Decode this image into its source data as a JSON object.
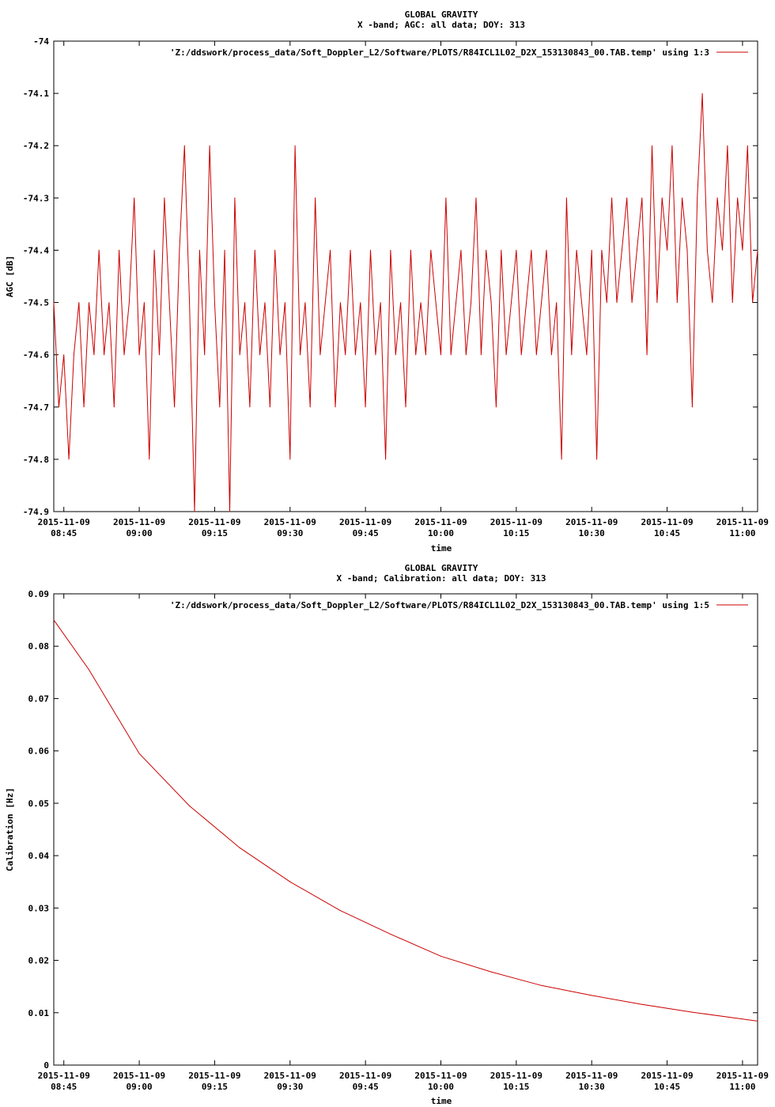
{
  "chart_data": [
    {
      "type": "line",
      "title": "GLOBAL GRAVITY",
      "subtitle": "X -band; AGC: all data; DOY: 313",
      "xlabel": "time",
      "ylabel": "AGC [dB]",
      "ylim": [
        -74.9,
        -74.0
      ],
      "yticks": [
        {
          "value": -74.0,
          "label": "-74"
        },
        {
          "value": -74.1,
          "label": "-74.1"
        },
        {
          "value": -74.2,
          "label": "-74.2"
        },
        {
          "value": -74.3,
          "label": "-74.3"
        },
        {
          "value": -74.4,
          "label": "-74.4"
        },
        {
          "value": -74.5,
          "label": "-74.5"
        },
        {
          "value": -74.6,
          "label": "-74.6"
        },
        {
          "value": -74.7,
          "label": "-74.7"
        },
        {
          "value": -74.8,
          "label": "-74.8"
        },
        {
          "value": -74.9,
          "label": "-74.9"
        }
      ],
      "xlim": [
        "2015-11-09 08:43",
        "2015-11-09 11:03"
      ],
      "xticks": [
        {
          "value": "2015-11-09 08:45",
          "date": "2015-11-09",
          "time": "08:45"
        },
        {
          "value": "2015-11-09 09:00",
          "date": "2015-11-09",
          "time": "09:00"
        },
        {
          "value": "2015-11-09 09:15",
          "date": "2015-11-09",
          "time": "09:15"
        },
        {
          "value": "2015-11-09 09:30",
          "date": "2015-11-09",
          "time": "09:30"
        },
        {
          "value": "2015-11-09 09:45",
          "date": "2015-11-09",
          "time": "09:45"
        },
        {
          "value": "2015-11-09 10:00",
          "date": "2015-11-09",
          "time": "10:00"
        },
        {
          "value": "2015-11-09 10:15",
          "date": "2015-11-09",
          "time": "10:15"
        },
        {
          "value": "2015-11-09 10:30",
          "date": "2015-11-09",
          "time": "10:30"
        },
        {
          "value": "2015-11-09 10:45",
          "date": "2015-11-09",
          "time": "10:45"
        },
        {
          "value": "2015-11-09 11:00",
          "date": "2015-11-09",
          "time": "11:00"
        }
      ],
      "legend_position": "top-right",
      "series": [
        {
          "name": "'Z:/ddswork/process_data/Soft_Doppler_L2/Software/PLOTS/R84ICL1L02_D2X_153130843_00.TAB.temp' using 1:3",
          "color": "#cc0000",
          "points": [
            [
              "2015-11-09 08:43",
              -74.5
            ],
            [
              "2015-11-09 08:44",
              -74.7
            ],
            [
              "2015-11-09 08:45",
              -74.6
            ],
            [
              "2015-11-09 08:46",
              -74.8
            ],
            [
              "2015-11-09 08:47",
              -74.6
            ],
            [
              "2015-11-09 08:48",
              -74.5
            ],
            [
              "2015-11-09 08:49",
              -74.7
            ],
            [
              "2015-11-09 08:50",
              -74.5
            ],
            [
              "2015-11-09 08:51",
              -74.6
            ],
            [
              "2015-11-09 08:52",
              -74.4
            ],
            [
              "2015-11-09 08:53",
              -74.6
            ],
            [
              "2015-11-09 08:54",
              -74.5
            ],
            [
              "2015-11-09 08:55",
              -74.7
            ],
            [
              "2015-11-09 08:56",
              -74.4
            ],
            [
              "2015-11-09 08:57",
              -74.6
            ],
            [
              "2015-11-09 08:58",
              -74.5
            ],
            [
              "2015-11-09 08:59",
              -74.3
            ],
            [
              "2015-11-09 09:00",
              -74.6
            ],
            [
              "2015-11-09 09:01",
              -74.5
            ],
            [
              "2015-11-09 09:02",
              -74.8
            ],
            [
              "2015-11-09 09:03",
              -74.4
            ],
            [
              "2015-11-09 09:04",
              -74.6
            ],
            [
              "2015-11-09 09:05",
              -74.3
            ],
            [
              "2015-11-09 09:06",
              -74.5
            ],
            [
              "2015-11-09 09:07",
              -74.7
            ],
            [
              "2015-11-09 09:08",
              -74.4
            ],
            [
              "2015-11-09 09:09",
              -74.2
            ],
            [
              "2015-11-09 09:10",
              -74.5
            ],
            [
              "2015-11-09 09:11",
              -74.9
            ],
            [
              "2015-11-09 09:12",
              -74.4
            ],
            [
              "2015-11-09 09:13",
              -74.6
            ],
            [
              "2015-11-09 09:14",
              -74.2
            ],
            [
              "2015-11-09 09:15",
              -74.5
            ],
            [
              "2015-11-09 09:16",
              -74.7
            ],
            [
              "2015-11-09 09:17",
              -74.4
            ],
            [
              "2015-11-09 09:18",
              -74.9
            ],
            [
              "2015-11-09 09:19",
              -74.3
            ],
            [
              "2015-11-09 09:20",
              -74.6
            ],
            [
              "2015-11-09 09:21",
              -74.5
            ],
            [
              "2015-11-09 09:22",
              -74.7
            ],
            [
              "2015-11-09 09:23",
              -74.4
            ],
            [
              "2015-11-09 09:24",
              -74.6
            ],
            [
              "2015-11-09 09:25",
              -74.5
            ],
            [
              "2015-11-09 09:26",
              -74.7
            ],
            [
              "2015-11-09 09:27",
              -74.4
            ],
            [
              "2015-11-09 09:28",
              -74.6
            ],
            [
              "2015-11-09 09:29",
              -74.5
            ],
            [
              "2015-11-09 09:30",
              -74.8
            ],
            [
              "2015-11-09 09:31",
              -74.2
            ],
            [
              "2015-11-09 09:32",
              -74.6
            ],
            [
              "2015-11-09 09:33",
              -74.5
            ],
            [
              "2015-11-09 09:34",
              -74.7
            ],
            [
              "2015-11-09 09:35",
              -74.3
            ],
            [
              "2015-11-09 09:36",
              -74.6
            ],
            [
              "2015-11-09 09:37",
              -74.5
            ],
            [
              "2015-11-09 09:38",
              -74.4
            ],
            [
              "2015-11-09 09:39",
              -74.7
            ],
            [
              "2015-11-09 09:40",
              -74.5
            ],
            [
              "2015-11-09 09:41",
              -74.6
            ],
            [
              "2015-11-09 09:42",
              -74.4
            ],
            [
              "2015-11-09 09:43",
              -74.6
            ],
            [
              "2015-11-09 09:44",
              -74.5
            ],
            [
              "2015-11-09 09:45",
              -74.7
            ],
            [
              "2015-11-09 09:46",
              -74.4
            ],
            [
              "2015-11-09 09:47",
              -74.6
            ],
            [
              "2015-11-09 09:48",
              -74.5
            ],
            [
              "2015-11-09 09:49",
              -74.8
            ],
            [
              "2015-11-09 09:50",
              -74.4
            ],
            [
              "2015-11-09 09:51",
              -74.6
            ],
            [
              "2015-11-09 09:52",
              -74.5
            ],
            [
              "2015-11-09 09:53",
              -74.7
            ],
            [
              "2015-11-09 09:54",
              -74.4
            ],
            [
              "2015-11-09 09:55",
              -74.6
            ],
            [
              "2015-11-09 09:56",
              -74.5
            ],
            [
              "2015-11-09 09:57",
              -74.6
            ],
            [
              "2015-11-09 09:58",
              -74.4
            ],
            [
              "2015-11-09 09:59",
              -74.5
            ],
            [
              "2015-11-09 10:00",
              -74.6
            ],
            [
              "2015-11-09 10:01",
              -74.3
            ],
            [
              "2015-11-09 10:02",
              -74.6
            ],
            [
              "2015-11-09 10:03",
              -74.5
            ],
            [
              "2015-11-09 10:04",
              -74.4
            ],
            [
              "2015-11-09 10:05",
              -74.6
            ],
            [
              "2015-11-09 10:06",
              -74.5
            ],
            [
              "2015-11-09 10:07",
              -74.3
            ],
            [
              "2015-11-09 10:08",
              -74.6
            ],
            [
              "2015-11-09 10:09",
              -74.4
            ],
            [
              "2015-11-09 10:10",
              -74.5
            ],
            [
              "2015-11-09 10:11",
              -74.7
            ],
            [
              "2015-11-09 10:12",
              -74.4
            ],
            [
              "2015-11-09 10:13",
              -74.6
            ],
            [
              "2015-11-09 10:14",
              -74.5
            ],
            [
              "2015-11-09 10:15",
              -74.4
            ],
            [
              "2015-11-09 10:16",
              -74.6
            ],
            [
              "2015-11-09 10:17",
              -74.5
            ],
            [
              "2015-11-09 10:18",
              -74.4
            ],
            [
              "2015-11-09 10:19",
              -74.6
            ],
            [
              "2015-11-09 10:20",
              -74.5
            ],
            [
              "2015-11-09 10:21",
              -74.4
            ],
            [
              "2015-11-09 10:22",
              -74.6
            ],
            [
              "2015-11-09 10:23",
              -74.5
            ],
            [
              "2015-11-09 10:24",
              -74.8
            ],
            [
              "2015-11-09 10:25",
              -74.3
            ],
            [
              "2015-11-09 10:26",
              -74.6
            ],
            [
              "2015-11-09 10:27",
              -74.4
            ],
            [
              "2015-11-09 10:28",
              -74.5
            ],
            [
              "2015-11-09 10:29",
              -74.6
            ],
            [
              "2015-11-09 10:30",
              -74.4
            ],
            [
              "2015-11-09 10:31",
              -74.8
            ],
            [
              "2015-11-09 10:32",
              -74.4
            ],
            [
              "2015-11-09 10:33",
              -74.5
            ],
            [
              "2015-11-09 10:34",
              -74.3
            ],
            [
              "2015-11-09 10:35",
              -74.5
            ],
            [
              "2015-11-09 10:36",
              -74.4
            ],
            [
              "2015-11-09 10:37",
              -74.3
            ],
            [
              "2015-11-09 10:38",
              -74.5
            ],
            [
              "2015-11-09 10:39",
              -74.4
            ],
            [
              "2015-11-09 10:40",
              -74.3
            ],
            [
              "2015-11-09 10:41",
              -74.6
            ],
            [
              "2015-11-09 10:42",
              -74.2
            ],
            [
              "2015-11-09 10:43",
              -74.5
            ],
            [
              "2015-11-09 10:44",
              -74.3
            ],
            [
              "2015-11-09 10:45",
              -74.4
            ],
            [
              "2015-11-09 10:46",
              -74.2
            ],
            [
              "2015-11-09 10:47",
              -74.5
            ],
            [
              "2015-11-09 10:48",
              -74.3
            ],
            [
              "2015-11-09 10:49",
              -74.4
            ],
            [
              "2015-11-09 10:50",
              -74.7
            ],
            [
              "2015-11-09 10:51",
              -74.3
            ],
            [
              "2015-11-09 10:52",
              -74.1
            ],
            [
              "2015-11-09 10:53",
              -74.4
            ],
            [
              "2015-11-09 10:54",
              -74.5
            ],
            [
              "2015-11-09 10:55",
              -74.3
            ],
            [
              "2015-11-09 10:56",
              -74.4
            ],
            [
              "2015-11-09 10:57",
              -74.2
            ],
            [
              "2015-11-09 10:58",
              -74.5
            ],
            [
              "2015-11-09 10:59",
              -74.3
            ],
            [
              "2015-11-09 11:00",
              -74.4
            ],
            [
              "2015-11-09 11:01",
              -74.2
            ],
            [
              "2015-11-09 11:02",
              -74.5
            ],
            [
              "2015-11-09 11:03",
              -74.4
            ]
          ]
        }
      ]
    },
    {
      "type": "line",
      "title": "GLOBAL GRAVITY",
      "subtitle": "X -band; Calibration: all data; DOY: 313",
      "xlabel": "time",
      "ylabel": "Calibration [Hz]",
      "ylim": [
        0,
        0.09
      ],
      "yticks": [
        {
          "value": 0.09,
          "label": "0.09"
        },
        {
          "value": 0.08,
          "label": "0.08"
        },
        {
          "value": 0.07,
          "label": "0.07"
        },
        {
          "value": 0.06,
          "label": "0.06"
        },
        {
          "value": 0.05,
          "label": "0.05"
        },
        {
          "value": 0.04,
          "label": "0.04"
        },
        {
          "value": 0.03,
          "label": "0.03"
        },
        {
          "value": 0.02,
          "label": "0.02"
        },
        {
          "value": 0.01,
          "label": "0.01"
        },
        {
          "value": 0,
          "label": "0"
        }
      ],
      "xlim": [
        "2015-11-09 08:43",
        "2015-11-09 11:03"
      ],
      "xticks": [
        {
          "value": "2015-11-09 08:45",
          "date": "2015-11-09",
          "time": "08:45"
        },
        {
          "value": "2015-11-09 09:00",
          "date": "2015-11-09",
          "time": "09:00"
        },
        {
          "value": "2015-11-09 09:15",
          "date": "2015-11-09",
          "time": "09:15"
        },
        {
          "value": "2015-11-09 09:30",
          "date": "2015-11-09",
          "time": "09:30"
        },
        {
          "value": "2015-11-09 09:45",
          "date": "2015-11-09",
          "time": "09:45"
        },
        {
          "value": "2015-11-09 10:00",
          "date": "2015-11-09",
          "time": "10:00"
        },
        {
          "value": "2015-11-09 10:15",
          "date": "2015-11-09",
          "time": "10:15"
        },
        {
          "value": "2015-11-09 10:30",
          "date": "2015-11-09",
          "time": "10:30"
        },
        {
          "value": "2015-11-09 10:45",
          "date": "2015-11-09",
          "time": "10:45"
        },
        {
          "value": "2015-11-09 11:00",
          "date": "2015-11-09",
          "time": "11:00"
        }
      ],
      "legend_position": "top-right",
      "series": [
        {
          "name": "'Z:/ddswork/process_data/Soft_Doppler_L2/Software/PLOTS/R84ICL1L02_D2X_153130843_00.TAB.temp' using 1:5",
          "color": "#cc0000",
          "points": [
            [
              "2015-11-09 08:43",
              0.085
            ],
            [
              "2015-11-09 08:50",
              0.0755
            ],
            [
              "2015-11-09 09:00",
              0.0595
            ],
            [
              "2015-11-09 09:10",
              0.0495
            ],
            [
              "2015-11-09 09:20",
              0.0415
            ],
            [
              "2015-11-09 09:30",
              0.035
            ],
            [
              "2015-11-09 09:40",
              0.0295
            ],
            [
              "2015-11-09 09:50",
              0.025
            ],
            [
              "2015-11-09 10:00",
              0.0208
            ],
            [
              "2015-11-09 10:10",
              0.0178
            ],
            [
              "2015-11-09 10:20",
              0.0152
            ],
            [
              "2015-11-09 10:30",
              0.0133
            ],
            [
              "2015-11-09 10:40",
              0.0116
            ],
            [
              "2015-11-09 10:50",
              0.0101
            ],
            [
              "2015-11-09 11:00",
              0.0088
            ],
            [
              "2015-11-09 11:03",
              0.0084
            ]
          ]
        }
      ]
    }
  ]
}
